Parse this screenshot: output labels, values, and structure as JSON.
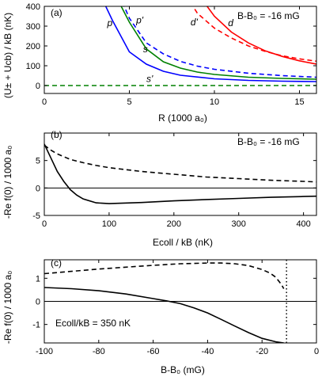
{
  "chart_data": [
    {
      "panel": "(a)",
      "type": "line",
      "annotation": "B-B₀ = -16 mG",
      "xlabel": "R (1000 a₀)",
      "ylabel": "(U± + Ucb) / kB (nK)",
      "xlim": [
        0,
        16
      ],
      "ylim": [
        -40,
        400
      ],
      "xticks": [
        0,
        5,
        10,
        15
      ],
      "yticks": [
        0,
        100,
        200,
        300,
        400
      ],
      "series": [
        {
          "name": "p",
          "color": "#0000ff",
          "dash": false,
          "x": [
            3.5,
            4,
            5,
            6,
            7,
            8,
            10,
            12,
            14,
            16
          ],
          "y": [
            420,
            330,
            170,
            108,
            72,
            52,
            34,
            26,
            22,
            20
          ]
        },
        {
          "name": "p'",
          "color": "#0000ff",
          "dash": true,
          "x": [
            4.6,
            5,
            6,
            7,
            8,
            9,
            10,
            12,
            14,
            16
          ],
          "y": [
            420,
            340,
            215,
            160,
            122,
            98,
            82,
            62,
            50,
            42
          ]
        },
        {
          "name": "s",
          "color": "#008000",
          "dash": false,
          "x": [
            4.4,
            5,
            6,
            7,
            8,
            9,
            10,
            12,
            14,
            16
          ],
          "y": [
            420,
            320,
            185,
            120,
            88,
            68,
            56,
            42,
            36,
            32
          ]
        },
        {
          "name": "s'",
          "color": "#008000",
          "dash": true,
          "x": [
            0,
            16
          ],
          "y": [
            0,
            0
          ]
        },
        {
          "name": "d",
          "color": "#ff0000",
          "dash": false,
          "x": [
            9.4,
            10,
            11,
            12,
            13,
            14,
            15,
            16
          ],
          "y": [
            420,
            350,
            270,
            215,
            175,
            147,
            125,
            108
          ]
        },
        {
          "name": "d'",
          "color": "#ff0000",
          "dash": true,
          "x": [
            8.6,
            9,
            10,
            11,
            12,
            13,
            14,
            15,
            16
          ],
          "y": [
            420,
            365,
            290,
            240,
            200,
            172,
            150,
            135,
            123
          ]
        }
      ],
      "labels": [
        {
          "text": "p",
          "x": 3.7,
          "y": 300
        },
        {
          "text": "p'",
          "x": 5.4,
          "y": 315
        },
        {
          "text": "s",
          "x": 5.8,
          "y": 168
        },
        {
          "text": "s'",
          "x": 6.0,
          "y": 18
        },
        {
          "text": "d'",
          "x": 8.6,
          "y": 305
        },
        {
          "text": "d",
          "x": 10.8,
          "y": 300
        }
      ]
    },
    {
      "panel": "(b)",
      "type": "line",
      "annotation": "B-B₀ = -16 mG",
      "xlabel": "Ecoll / kB (nK)",
      "ylabel": "-Re f(0) / 1000 a₀",
      "xlim": [
        0,
        420
      ],
      "ylim": [
        -5,
        10
      ],
      "xticks": [
        0,
        100,
        200,
        300,
        400
      ],
      "yticks": [
        -5,
        0,
        5
      ],
      "series": [
        {
          "name": "solid",
          "dash": false,
          "x": [
            0,
            10,
            20,
            30,
            40,
            50,
            60,
            80,
            100,
            150,
            200,
            250,
            300,
            350,
            400,
            420
          ],
          "y": [
            8,
            5.5,
            3,
            1.2,
            -0.3,
            -1.3,
            -2.0,
            -2.7,
            -2.85,
            -2.65,
            -2.35,
            -2.1,
            -1.9,
            -1.7,
            -1.55,
            -1.5
          ]
        },
        {
          "name": "dashed",
          "dash": true,
          "x": [
            0,
            10,
            20,
            40,
            60,
            80,
            100,
            150,
            200,
            250,
            300,
            350,
            400,
            420
          ],
          "y": [
            7.8,
            6.9,
            6.2,
            5.2,
            4.6,
            4.1,
            3.7,
            3.0,
            2.5,
            2.0,
            1.7,
            1.4,
            1.2,
            1.1
          ]
        }
      ]
    },
    {
      "panel": "(c)",
      "type": "line",
      "annotation": "Ecoll/kB = 350 nK",
      "xlabel": "B-B₀ (mG)",
      "ylabel": "-Re f(0) / 1000 a₀",
      "xlim": [
        -100,
        0
      ],
      "ylim": [
        -1.8,
        1.8
      ],
      "xticks": [
        -100,
        -80,
        -60,
        -40,
        -20,
        0
      ],
      "yticks": [
        -1,
        0,
        1
      ],
      "vline": -11,
      "series": [
        {
          "name": "solid",
          "dash": false,
          "x": [
            -100,
            -90,
            -80,
            -70,
            -60,
            -55,
            -50,
            -45,
            -40,
            -35,
            -30,
            -25,
            -20,
            -15,
            -12
          ],
          "y": [
            0.6,
            0.55,
            0.46,
            0.32,
            0.12,
            0.02,
            -0.1,
            -0.28,
            -0.5,
            -0.78,
            -1.07,
            -1.35,
            -1.6,
            -1.75,
            -1.8
          ]
        },
        {
          "name": "dashed",
          "dash": true,
          "x": [
            -100,
            -90,
            -80,
            -70,
            -60,
            -50,
            -40,
            -35,
            -30,
            -25,
            -20,
            -17,
            -15,
            -13,
            -12
          ],
          "y": [
            1.2,
            1.3,
            1.4,
            1.48,
            1.56,
            1.63,
            1.66,
            1.66,
            1.63,
            1.55,
            1.38,
            1.22,
            1.05,
            0.75,
            0.55
          ]
        }
      ]
    }
  ]
}
